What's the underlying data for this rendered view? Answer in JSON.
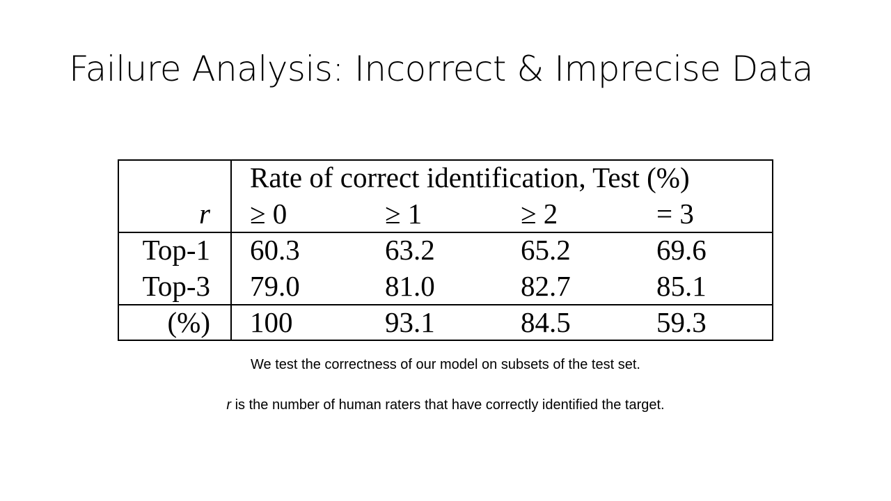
{
  "slide": {
    "title": "Failure Analysis: Incorrect & Imprecise Data"
  },
  "table": {
    "header_title": "Rate of correct identification, Test (%)",
    "r_label": "r",
    "columns": [
      "≥ 0",
      "≥ 1",
      "≥ 2",
      "= 3"
    ],
    "rows": [
      {
        "label": "Top-1",
        "values": [
          "60.3",
          "63.2",
          "65.2",
          "69.6"
        ]
      },
      {
        "label": "Top-3",
        "values": [
          "79.0",
          "81.0",
          "82.7",
          "85.1"
        ]
      },
      {
        "label": "(%)",
        "values": [
          "100",
          "93.1",
          "84.5",
          "59.3"
        ]
      }
    ]
  },
  "captions": {
    "line1": "We test the correctness of our model on subsets of the test set.",
    "line2_var": "r",
    "line2_rest": " is the number of human raters that have correctly identified the target."
  }
}
